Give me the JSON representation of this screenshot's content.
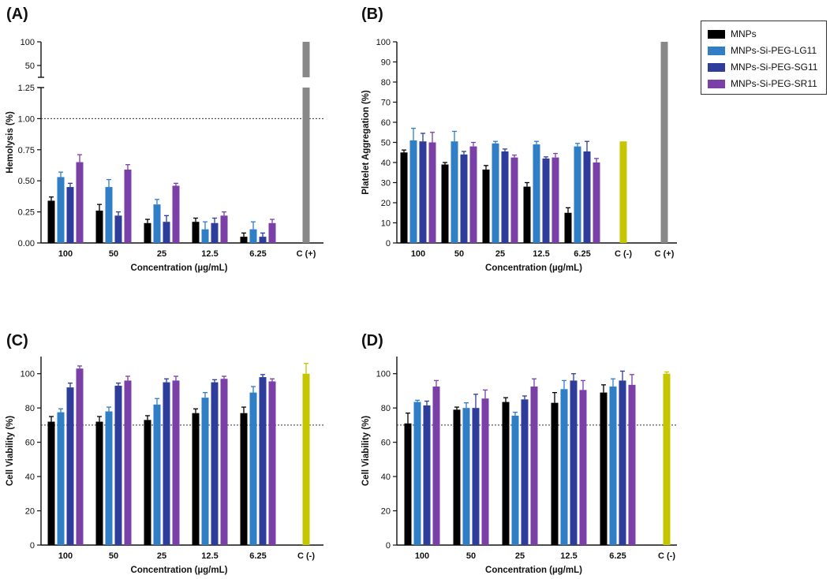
{
  "legend": {
    "items": [
      {
        "name": "MNPs",
        "color": "#000000"
      },
      {
        "name": "MNPs-Si-PEG-LG11",
        "color": "#2F7EC6"
      },
      {
        "name": "MNPs-Si-PEG-SG11",
        "color": "#2E3D9B"
      },
      {
        "name": "MNPs-Si-PEG-SR11",
        "color": "#7B3FA8"
      }
    ]
  },
  "colors": {
    "control_positive": "#888888",
    "control_negative": "#C6C600"
  },
  "chart_data": [
    {
      "panel": "(A)",
      "type": "bar",
      "ylabel": "Hemolysis (%)",
      "xlabel": "Concentration (µg/mL)",
      "ylim": [
        0,
        1.25
      ],
      "yticks": [
        "0.00",
        "0.25",
        "0.50",
        "0.75",
        "1.00",
        "1.25"
      ],
      "broken_axis_upper": {
        "ylim": [
          25,
          100
        ],
        "yticks": [
          "50",
          "100"
        ]
      },
      "reference_line": 1.0,
      "categories": [
        "100",
        "50",
        "25",
        "12.5",
        "6.25",
        "C (+)"
      ],
      "series": [
        {
          "name": "MNPs",
          "values": [
            0.34,
            0.26,
            0.16,
            0.17,
            0.05,
            null
          ],
          "errors": [
            0.03,
            0.05,
            0.03,
            0.03,
            0.03,
            null
          ]
        },
        {
          "name": "MNPs-Si-PEG-LG11",
          "values": [
            0.53,
            0.45,
            0.31,
            0.11,
            0.11,
            null
          ],
          "errors": [
            0.04,
            0.06,
            0.04,
            0.06,
            0.06,
            null
          ]
        },
        {
          "name": "MNPs-Si-PEG-SG11",
          "values": [
            0.45,
            0.22,
            0.17,
            0.16,
            0.05,
            null
          ],
          "errors": [
            0.03,
            0.03,
            0.05,
            0.04,
            0.03,
            null
          ]
        },
        {
          "name": "MNPs-Si-PEG-SR11",
          "values": [
            0.65,
            0.59,
            0.46,
            0.22,
            0.16,
            null
          ],
          "errors": [
            0.06,
            0.04,
            0.02,
            0.03,
            0.03,
            null
          ]
        }
      ],
      "controls": [
        {
          "category": "C (+)",
          "value": 100,
          "color_key": "control_positive"
        }
      ]
    },
    {
      "panel": "(B)",
      "type": "bar",
      "ylabel": "Platelet Aggregation (%)",
      "xlabel": "Concentration (µg/mL)",
      "ylim": [
        0,
        100
      ],
      "yticks": [
        "0",
        "10",
        "20",
        "30",
        "40",
        "50",
        "60",
        "70",
        "80",
        "90",
        "100"
      ],
      "categories": [
        "100",
        "50",
        "25",
        "12.5",
        "6.25",
        "C (-)",
        "C (+)"
      ],
      "series": [
        {
          "name": "MNPs",
          "values": [
            45,
            39,
            36.5,
            28,
            15,
            null,
            null
          ],
          "errors": [
            1.2,
            1,
            2,
            2,
            2.5,
            null,
            null
          ]
        },
        {
          "name": "MNPs-Si-PEG-LG11",
          "values": [
            51,
            50.5,
            49.5,
            49,
            48,
            null,
            null
          ],
          "errors": [
            6,
            5,
            1,
            1.5,
            1.5,
            null,
            null
          ]
        },
        {
          "name": "MNPs-Si-PEG-SG11",
          "values": [
            50.5,
            44,
            45.5,
            42,
            45.5,
            null,
            null
          ],
          "errors": [
            4,
            1.5,
            1.2,
            0.8,
            5,
            null,
            null
          ]
        },
        {
          "name": "MNPs-Si-PEG-SR11",
          "values": [
            50,
            48,
            42.5,
            42.5,
            40,
            null,
            null
          ],
          "errors": [
            5,
            2,
            1.2,
            2,
            2,
            null,
            null
          ]
        }
      ],
      "controls": [
        {
          "category": "C (-)",
          "value": 50.5,
          "color_key": "control_negative"
        },
        {
          "category": "C (+)",
          "value": 100,
          "color_key": "control_positive"
        }
      ]
    },
    {
      "panel": "(C)",
      "type": "bar",
      "ylabel": "Cell Viability (%)",
      "xlabel": "Concentration (µg/mL)",
      "ylim": [
        0,
        110
      ],
      "yticks": [
        "0",
        "20",
        "40",
        "60",
        "80",
        "100"
      ],
      "reference_line": 70,
      "categories": [
        "100",
        "50",
        "25",
        "12.5",
        "6.25",
        "C (-)"
      ],
      "series": [
        {
          "name": "MNPs",
          "values": [
            72,
            72,
            73,
            77,
            77,
            null
          ],
          "errors": [
            3,
            3,
            2.5,
            2.5,
            3.5,
            null
          ]
        },
        {
          "name": "MNPs-Si-PEG-LG11",
          "values": [
            77.5,
            78,
            82,
            86,
            89,
            null
          ],
          "errors": [
            2,
            2.5,
            3.5,
            3,
            3.5,
            null
          ]
        },
        {
          "name": "MNPs-Si-PEG-SG11",
          "values": [
            92,
            93,
            95,
            95,
            98,
            null
          ],
          "errors": [
            2.5,
            1.5,
            2,
            1.5,
            1.5,
            null
          ]
        },
        {
          "name": "MNPs-Si-PEG-SR11",
          "values": [
            103,
            96,
            96,
            97,
            95.5,
            null
          ],
          "errors": [
            1.5,
            2.5,
            2.5,
            1.5,
            1.5,
            null
          ]
        }
      ],
      "controls": [
        {
          "category": "C (-)",
          "value": 100,
          "color_key": "control_negative",
          "error": 6
        }
      ]
    },
    {
      "panel": "(D)",
      "type": "bar",
      "ylabel": "Cell Viability (%)",
      "xlabel": "Concentration (µg/mL)",
      "ylim": [
        0,
        110
      ],
      "yticks": [
        "0",
        "20",
        "40",
        "60",
        "80",
        "100"
      ],
      "reference_line": 70,
      "categories": [
        "100",
        "50",
        "25",
        "12.5",
        "6.25",
        "C (-)"
      ],
      "series": [
        {
          "name": "MNPs",
          "values": [
            71,
            79,
            83.5,
            83,
            89,
            null
          ],
          "errors": [
            6,
            1.5,
            2.5,
            6,
            4.5,
            null
          ]
        },
        {
          "name": "MNPs-Si-PEG-LG11",
          "values": [
            83.5,
            80,
            75.5,
            91,
            92.5,
            null
          ],
          "errors": [
            1,
            3,
            2,
            5,
            4.5,
            null
          ]
        },
        {
          "name": "MNPs-Si-PEG-SG11",
          "values": [
            81.5,
            80,
            85,
            96,
            96,
            null
          ],
          "errors": [
            2.5,
            8,
            2,
            4,
            5.5,
            null
          ]
        },
        {
          "name": "MNPs-Si-PEG-SR11",
          "values": [
            92.5,
            85.5,
            92.5,
            90.5,
            93.5,
            null
          ],
          "errors": [
            3.5,
            5,
            4.5,
            5.5,
            6,
            null
          ]
        }
      ],
      "controls": [
        {
          "category": "C (-)",
          "value": 100,
          "color_key": "control_negative",
          "error": 1
        }
      ]
    }
  ]
}
